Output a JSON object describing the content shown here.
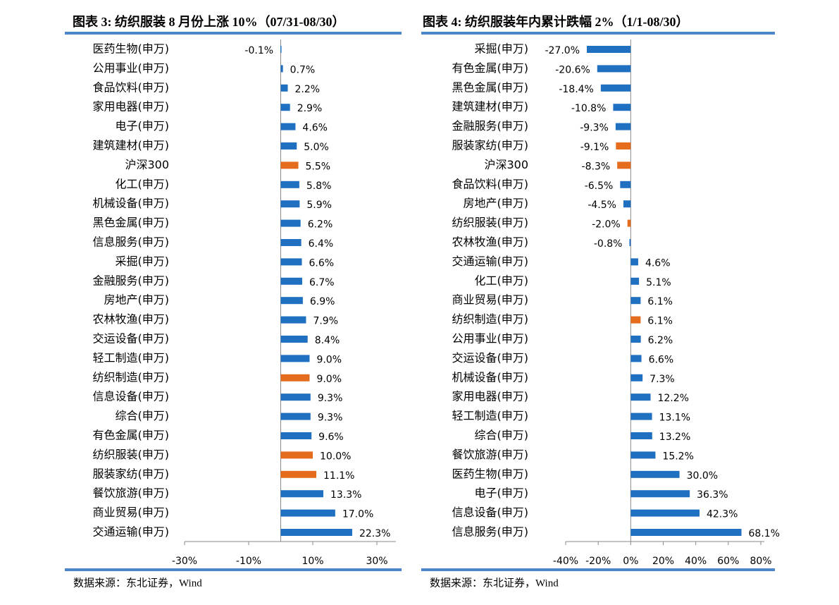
{
  "chart_data": [
    {
      "type": "bar",
      "orientation": "horizontal",
      "title": "图表 3:  纺织服装 8 月份上涨 10%（07/31-08/30）",
      "source": "数据来源：东北证券，Wind",
      "categories": [
        "医药生物(申万)",
        "公用事业(申万)",
        "食品饮料(申万)",
        "家用电器(申万)",
        "电子(申万)",
        "建筑建材(申万)",
        "沪深300",
        "化工(申万)",
        "机械设备(申万)",
        "黑色金属(申万)",
        "信息服务(申万)",
        "采掘(申万)",
        "金融服务(申万)",
        "房地产(申万)",
        "农林牧渔(申万)",
        "交运设备(申万)",
        "轻工制造(申万)",
        "纺织制造(申万)",
        "信息设备(申万)",
        "综合(申万)",
        "有色金属(申万)",
        "纺织服装(申万)",
        "服装家纺(申万)",
        "餐饮旅游(申万)",
        "商业贸易(申万)",
        "交通运输(申万)"
      ],
      "values": [
        -0.1,
        0.7,
        2.2,
        2.9,
        4.6,
        5.0,
        5.5,
        5.8,
        5.9,
        6.2,
        6.4,
        6.6,
        6.7,
        6.9,
        7.9,
        8.4,
        9.0,
        9.0,
        9.3,
        9.3,
        9.6,
        10.0,
        11.1,
        13.3,
        17.0,
        22.3
      ],
      "value_labels": [
        "-0.1%",
        "0.7%",
        "2.2%",
        "2.9%",
        "4.6%",
        "5.0%",
        "5.5%",
        "5.8%",
        "5.9%",
        "6.2%",
        "6.4%",
        "6.6%",
        "6.7%",
        "6.9%",
        "7.9%",
        "8.4%",
        "9.0%",
        "9.0%",
        "9.3%",
        "9.3%",
        "9.6%",
        "10.0%",
        "11.1%",
        "13.3%",
        "17.0%",
        "22.3%"
      ],
      "colors": [
        "#1f70c1",
        "#1f70c1",
        "#1f70c1",
        "#1f70c1",
        "#1f70c1",
        "#1f70c1",
        "#e46c1c",
        "#1f70c1",
        "#1f70c1",
        "#1f70c1",
        "#1f70c1",
        "#1f70c1",
        "#1f70c1",
        "#1f70c1",
        "#1f70c1",
        "#1f70c1",
        "#1f70c1",
        "#e46c1c",
        "#1f70c1",
        "#1f70c1",
        "#1f70c1",
        "#e46c1c",
        "#e46c1c",
        "#1f70c1",
        "#1f70c1",
        "#1f70c1"
      ],
      "xlim": [
        -30,
        35
      ],
      "xticks": [
        {
          "value": -30,
          "label": "-30%"
        },
        {
          "value": -10,
          "label": "-10%"
        },
        {
          "value": 10,
          "label": "10%"
        },
        {
          "value": 30,
          "label": "30%"
        }
      ]
    },
    {
      "type": "bar",
      "orientation": "horizontal",
      "title": "图表 4:  纺织服装年内累计跌幅 2%（1/1-08/30）",
      "source": "数据来源：东北证券，Wind",
      "categories": [
        "采掘(申万)",
        "有色金属(申万)",
        "黑色金属(申万)",
        "建筑建材(申万)",
        "金融服务(申万)",
        "服装家纺(申万)",
        "沪深300",
        "食品饮料(申万)",
        "房地产(申万)",
        "纺织服装(申万)",
        "农林牧渔(申万)",
        "交通运输(申万)",
        "化工(申万)",
        "商业贸易(申万)",
        "纺织制造(申万)",
        "公用事业(申万)",
        "交运设备(申万)",
        "机械设备(申万)",
        "家用电器(申万)",
        "轻工制造(申万)",
        "综合(申万)",
        "餐饮旅游(申万)",
        "医药生物(申万)",
        "电子(申万)",
        "信息设备(申万)",
        "信息服务(申万)"
      ],
      "values": [
        -27.0,
        -20.6,
        -18.4,
        -10.8,
        -9.3,
        -9.1,
        -8.3,
        -6.5,
        -4.5,
        -2.0,
        -0.8,
        4.6,
        5.1,
        6.1,
        6.1,
        6.2,
        6.6,
        7.3,
        12.2,
        13.1,
        13.2,
        15.2,
        30.0,
        36.3,
        42.3,
        68.1
      ],
      "value_labels": [
        "-27.0%",
        "-20.6%",
        "-18.4%",
        "-10.8%",
        "-9.3%",
        "-9.1%",
        "-8.3%",
        "-6.5%",
        "-4.5%",
        "-2.0%",
        "-0.8%",
        "4.6%",
        "5.1%",
        "6.1%",
        "6.1%",
        "6.2%",
        "6.6%",
        "7.3%",
        "12.2%",
        "13.1%",
        "13.2%",
        "15.2%",
        "30.0%",
        "36.3%",
        "42.3%",
        "68.1%"
      ],
      "colors": [
        "#1f70c1",
        "#1f70c1",
        "#1f70c1",
        "#1f70c1",
        "#1f70c1",
        "#e46c1c",
        "#e46c1c",
        "#1f70c1",
        "#1f70c1",
        "#e46c1c",
        "#1f70c1",
        "#1f70c1",
        "#1f70c1",
        "#1f70c1",
        "#e46c1c",
        "#1f70c1",
        "#1f70c1",
        "#1f70c1",
        "#1f70c1",
        "#1f70c1",
        "#1f70c1",
        "#1f70c1",
        "#1f70c1",
        "#1f70c1",
        "#1f70c1",
        "#1f70c1"
      ],
      "xlim": [
        -40,
        80
      ],
      "xticks": [
        {
          "value": -40,
          "label": "-40%"
        },
        {
          "value": -20,
          "label": "-20%"
        },
        {
          "value": 0,
          "label": "0%"
        },
        {
          "value": 20,
          "label": "20%"
        },
        {
          "value": 40,
          "label": "40%"
        },
        {
          "value": 60,
          "label": "60%"
        },
        {
          "value": 80,
          "label": "80%"
        }
      ]
    }
  ]
}
